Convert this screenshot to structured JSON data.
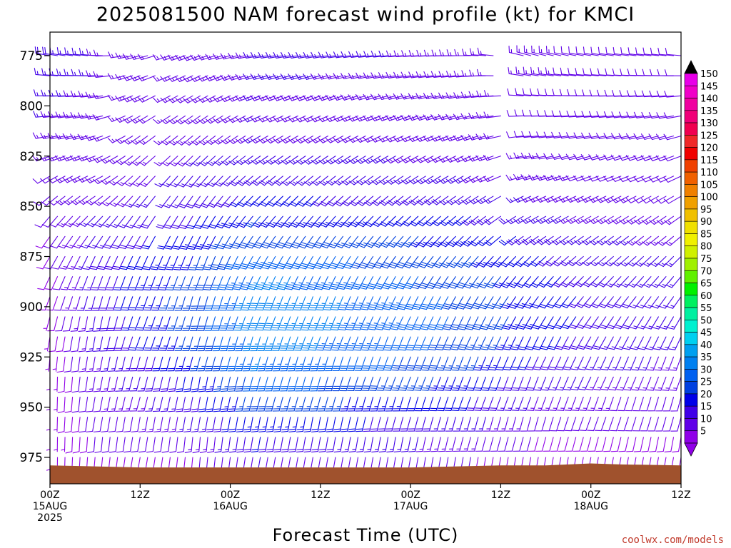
{
  "chart_data": {
    "type": "wind-barb time-height profile",
    "title": "2025081500 NAM forecast wind profile (kt) for KMCI",
    "xlabel": "Forecast Time (UTC)",
    "ylabel": "",
    "y_axis": {
      "scale": "pressure",
      "inverted": true,
      "ylim": [
        990,
        765
      ],
      "ticks": [
        "775",
        "800",
        "825",
        "850",
        "875",
        "900",
        "925",
        "950",
        "975"
      ]
    },
    "x_axis": {
      "xlim_hours": [
        0,
        84
      ],
      "step_hours": 1,
      "ticks": [
        {
          "hour": 0,
          "lines": [
            "00Z",
            "15AUG",
            "2025"
          ]
        },
        {
          "hour": 12,
          "lines": [
            "12Z"
          ]
        },
        {
          "hour": 24,
          "lines": [
            "00Z",
            "16AUG"
          ]
        },
        {
          "hour": 36,
          "lines": [
            "12Z"
          ]
        },
        {
          "hour": 48,
          "lines": [
            "00Z",
            "17AUG"
          ]
        },
        {
          "hour": 60,
          "lines": [
            "12Z"
          ]
        },
        {
          "hour": 72,
          "lines": [
            "00Z",
            "18AUG"
          ]
        },
        {
          "hour": 84,
          "lines": [
            "12Z"
          ]
        }
      ]
    },
    "levels_hpa": [
      775,
      785,
      795,
      805,
      815,
      825,
      835,
      845,
      855,
      865,
      875,
      885,
      895,
      905,
      915,
      925,
      935,
      945,
      955,
      965,
      975,
      985
    ],
    "wind_keyframes": [
      {
        "hour": 0,
        "speed_kt": [
          18,
          17,
          16,
          15,
          14,
          13,
          12,
          11,
          10,
          9,
          9,
          8,
          8,
          7,
          7,
          6,
          6,
          6,
          6,
          6,
          6,
          5
        ],
        "dir_deg": [
          280,
          275,
          270,
          265,
          260,
          250,
          240,
          230,
          220,
          215,
          210,
          205,
          200,
          195,
          190,
          185,
          180,
          180,
          180,
          180,
          180,
          180
        ]
      },
      {
        "hour": 6,
        "speed_kt": [
          15,
          15,
          14,
          14,
          13,
          13,
          13,
          14,
          15,
          16,
          17,
          17,
          17,
          16,
          15,
          14,
          13,
          12,
          11,
          10,
          9,
          8
        ],
        "dir_deg": [
          275,
          270,
          265,
          260,
          255,
          250,
          245,
          235,
          225,
          215,
          205,
          200,
          195,
          190,
          190,
          190,
          190,
          190,
          190,
          185,
          185,
          180
        ]
      },
      {
        "hour": 12,
        "speed_kt": [
          14,
          14,
          14,
          13,
          13,
          13,
          14,
          15,
          17,
          19,
          21,
          22,
          22,
          21,
          20,
          18,
          16,
          14,
          12,
          10,
          9,
          8
        ],
        "dir_deg": [
          255,
          250,
          245,
          240,
          235,
          230,
          225,
          220,
          215,
          210,
          205,
          200,
          200,
          200,
          200,
          195,
          195,
          195,
          190,
          190,
          190,
          185
        ]
      },
      {
        "hour": 20,
        "speed_kt": [
          14,
          14,
          14,
          14,
          14,
          15,
          16,
          18,
          20,
          23,
          25,
          27,
          28,
          28,
          27,
          25,
          22,
          19,
          16,
          13,
          10,
          8
        ],
        "dir_deg": [
          250,
          245,
          240,
          235,
          230,
          225,
          220,
          215,
          210,
          205,
          200,
          200,
          195,
          195,
          195,
          195,
          190,
          190,
          190,
          185,
          185,
          185
        ]
      },
      {
        "hour": 28,
        "speed_kt": [
          15,
          15,
          15,
          15,
          15,
          16,
          18,
          21,
          25,
          29,
          33,
          36,
          38,
          38,
          37,
          35,
          32,
          28,
          24,
          20,
          15,
          10
        ],
        "dir_deg": [
          260,
          255,
          250,
          245,
          240,
          235,
          230,
          225,
          220,
          215,
          210,
          205,
          200,
          200,
          195,
          195,
          195,
          195,
          190,
          190,
          190,
          185
        ]
      },
      {
        "hour": 36,
        "speed_kt": [
          15,
          15,
          14,
          14,
          14,
          15,
          17,
          20,
          24,
          28,
          31,
          34,
          36,
          36,
          35,
          33,
          30,
          26,
          22,
          18,
          14,
          10
        ],
        "dir_deg": [
          260,
          255,
          250,
          245,
          240,
          235,
          230,
          225,
          220,
          215,
          210,
          205,
          200,
          200,
          200,
          195,
          195,
          195,
          190,
          190,
          190,
          185
        ]
      },
      {
        "hour": 46,
        "speed_kt": [
          15,
          14,
          14,
          14,
          14,
          15,
          16,
          19,
          22,
          26,
          29,
          31,
          33,
          33,
          32,
          30,
          27,
          23,
          19,
          16,
          12,
          9
        ],
        "dir_deg": [
          265,
          260,
          255,
          250,
          245,
          240,
          235,
          230,
          225,
          220,
          215,
          210,
          205,
          205,
          200,
          200,
          200,
          195,
          195,
          190,
          190,
          185
        ]
      },
      {
        "hour": 56,
        "speed_kt": [
          14,
          14,
          13,
          13,
          13,
          14,
          15,
          17,
          20,
          23,
          26,
          28,
          29,
          29,
          28,
          26,
          23,
          20,
          16,
          13,
          10,
          8
        ],
        "dir_deg": [
          270,
          265,
          260,
          255,
          250,
          245,
          240,
          235,
          230,
          225,
          220,
          215,
          210,
          205,
          205,
          200,
          200,
          200,
          195,
          195,
          190,
          185
        ]
      },
      {
        "hour": 64,
        "speed_kt": [
          13,
          13,
          12,
          12,
          12,
          13,
          14,
          15,
          17,
          19,
          21,
          22,
          23,
          23,
          22,
          20,
          18,
          15,
          12,
          10,
          8,
          6
        ],
        "dir_deg": [
          285,
          280,
          275,
          270,
          265,
          260,
          255,
          245,
          240,
          235,
          225,
          220,
          215,
          210,
          205,
          205,
          200,
          200,
          195,
          195,
          190,
          185
        ]
      },
      {
        "hour": 72,
        "speed_kt": [
          12,
          12,
          12,
          11,
          11,
          11,
          12,
          13,
          14,
          16,
          17,
          18,
          19,
          19,
          18,
          17,
          15,
          13,
          11,
          9,
          8,
          6
        ],
        "dir_deg": [
          280,
          275,
          270,
          265,
          260,
          255,
          250,
          245,
          240,
          235,
          230,
          225,
          220,
          215,
          210,
          205,
          205,
          200,
          200,
          195,
          190,
          185
        ]
      },
      {
        "hour": 84,
        "speed_kt": [
          11,
          11,
          11,
          11,
          10,
          10,
          11,
          12,
          13,
          14,
          15,
          16,
          16,
          16,
          15,
          14,
          13,
          11,
          10,
          9,
          8,
          6
        ],
        "dir_deg": [
          275,
          270,
          265,
          260,
          255,
          250,
          245,
          240,
          235,
          230,
          225,
          220,
          215,
          210,
          205,
          200,
          200,
          195,
          195,
          190,
          190,
          185
        ]
      }
    ],
    "missing": [
      {
        "hour_start": 9,
        "hour_end": 9,
        "level_hpa_max": 815
      },
      {
        "hour_start": 15,
        "hour_end": 15,
        "level_hpa_max": 865
      },
      {
        "hour_start": 60,
        "hour_end": 61,
        "level_hpa_max": 790
      },
      {
        "hour_start": 61,
        "hour_end": 61,
        "level_hpa_max": 865
      },
      {
        "hour_start": 62,
        "hour_end": 62,
        "level_hpa_max": 845
      }
    ],
    "surface_pressure_hpa": [
      {
        "hour": 0,
        "p": 979
      },
      {
        "hour": 12,
        "p": 980
      },
      {
        "hour": 24,
        "p": 980
      },
      {
        "hour": 36,
        "p": 980
      },
      {
        "hour": 48,
        "p": 980
      },
      {
        "hour": 60,
        "p": 979
      },
      {
        "hour": 66,
        "p": 979
      },
      {
        "hour": 72,
        "p": 978
      },
      {
        "hour": 76,
        "p": 978.5
      },
      {
        "hour": 84,
        "p": 979
      }
    ],
    "colorbar": {
      "unit": "kt",
      "labels": [
        "150",
        "145",
        "140",
        "135",
        "130",
        "125",
        "120",
        "115",
        "110",
        "105",
        "100",
        "95",
        "90",
        "85",
        "80",
        "75",
        "70",
        "65",
        "60",
        "55",
        "50",
        "45",
        "40",
        "35",
        "30",
        "25",
        "20",
        "15",
        "10",
        "5"
      ],
      "colors": [
        "#e800e8",
        "#f000c8",
        "#f000a0",
        "#f00078",
        "#f00050",
        "#f02828",
        "#f00000",
        "#f04000",
        "#f06000",
        "#f08000",
        "#f0a000",
        "#f0c000",
        "#f0e000",
        "#f0f000",
        "#d0f000",
        "#a0f000",
        "#60f000",
        "#00f000",
        "#00f060",
        "#00f0a0",
        "#00f0d0",
        "#00d0f0",
        "#00a0f0",
        "#0080f0",
        "#0060f0",
        "#0040e0",
        "#0000e8",
        "#4000e8",
        "#6000e8",
        "#9000e8"
      ],
      "top_arrow_color": "#000000",
      "bottom_arrow_color": "#9000e8"
    },
    "surface_color": "#a0522d",
    "credit": "coolwx.com/models"
  }
}
